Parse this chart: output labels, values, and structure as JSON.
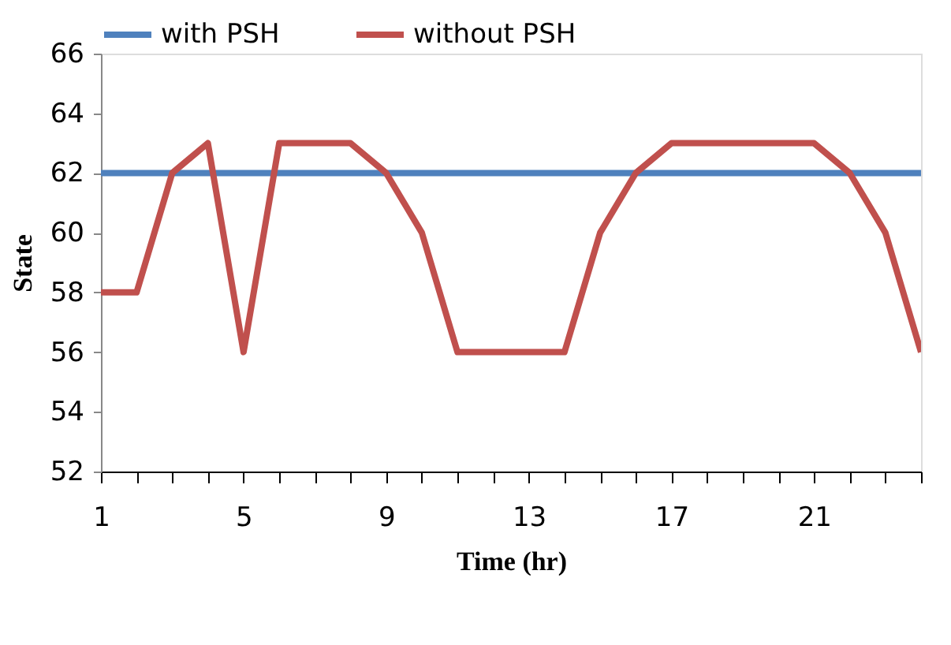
{
  "chart_data": {
    "type": "line",
    "xlabel": "Time (hr)",
    "ylabel": "State",
    "x": [
      1,
      2,
      3,
      4,
      5,
      6,
      7,
      8,
      9,
      10,
      11,
      12,
      13,
      14,
      15,
      16,
      17,
      18,
      19,
      20,
      21,
      22,
      23,
      24
    ],
    "series": [
      {
        "name": "with PSH",
        "color": "#4f81bd",
        "values": [
          62,
          62,
          62,
          62,
          62,
          62,
          62,
          62,
          62,
          62,
          62,
          62,
          62,
          62,
          62,
          62,
          62,
          62,
          62,
          62,
          62,
          62,
          62,
          62
        ]
      },
      {
        "name": "without PSH",
        "color": "#c0504d",
        "values": [
          58,
          58,
          62,
          63,
          56,
          63,
          63,
          63,
          62,
          60,
          56,
          56,
          56,
          56,
          60,
          62,
          63,
          63,
          63,
          63,
          63,
          62,
          60,
          56
        ]
      }
    ],
    "xlim": [
      1,
      24
    ],
    "xticks": [
      1,
      {
        "value": 2,
        "label": null
      },
      {
        "value": 3,
        "label": null
      },
      {
        "value": 4,
        "label": null
      },
      5,
      {
        "value": 6,
        "label": null
      },
      {
        "value": 7,
        "label": null
      },
      {
        "value": 8,
        "label": null
      },
      9,
      {
        "value": 10,
        "label": null
      },
      {
        "value": 11,
        "label": null
      },
      {
        "value": 12,
        "label": null
      },
      13,
      {
        "value": 14,
        "label": null
      },
      {
        "value": 15,
        "label": null
      },
      {
        "value": 16,
        "label": null
      },
      17,
      {
        "value": 18,
        "label": null
      },
      {
        "value": 19,
        "label": null
      },
      {
        "value": 20,
        "label": null
      },
      21,
      {
        "value": 22,
        "label": null
      },
      {
        "value": 23,
        "label": null
      },
      {
        "value": 24,
        "label": null
      }
    ],
    "ylim": [
      52,
      66
    ],
    "yticks": [
      52,
      54,
      56,
      58,
      60,
      62,
      64,
      66
    ],
    "grid": false,
    "legend": "top",
    "marker": "none",
    "line_style": "solid"
  }
}
